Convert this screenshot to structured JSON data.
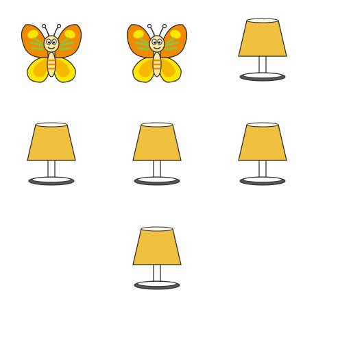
{
  "scene": {
    "background": "#ffffff",
    "rows": [
      [
        "butterfly-icon",
        "butterfly-icon",
        "lamp-icon"
      ],
      [
        "lamp-icon",
        "lamp-icon",
        "lamp-icon"
      ],
      [
        null,
        "lamp-icon",
        null
      ]
    ],
    "colors": {
      "butterfly_wing_outer": "#f08a00",
      "butterfly_wing_inner": "#ffe600",
      "butterfly_wing_lower": "#f5b800",
      "butterfly_vein": "#8cc63f",
      "butterfly_body": "#ffe9a0",
      "butterfly_stripe": "#f08a00",
      "lamp_shade": "#f0c040",
      "lamp_shade_rim": "#fffbe8",
      "lamp_stem": "#ffffff",
      "lamp_base": "#555555",
      "outline": "#222222"
    }
  }
}
